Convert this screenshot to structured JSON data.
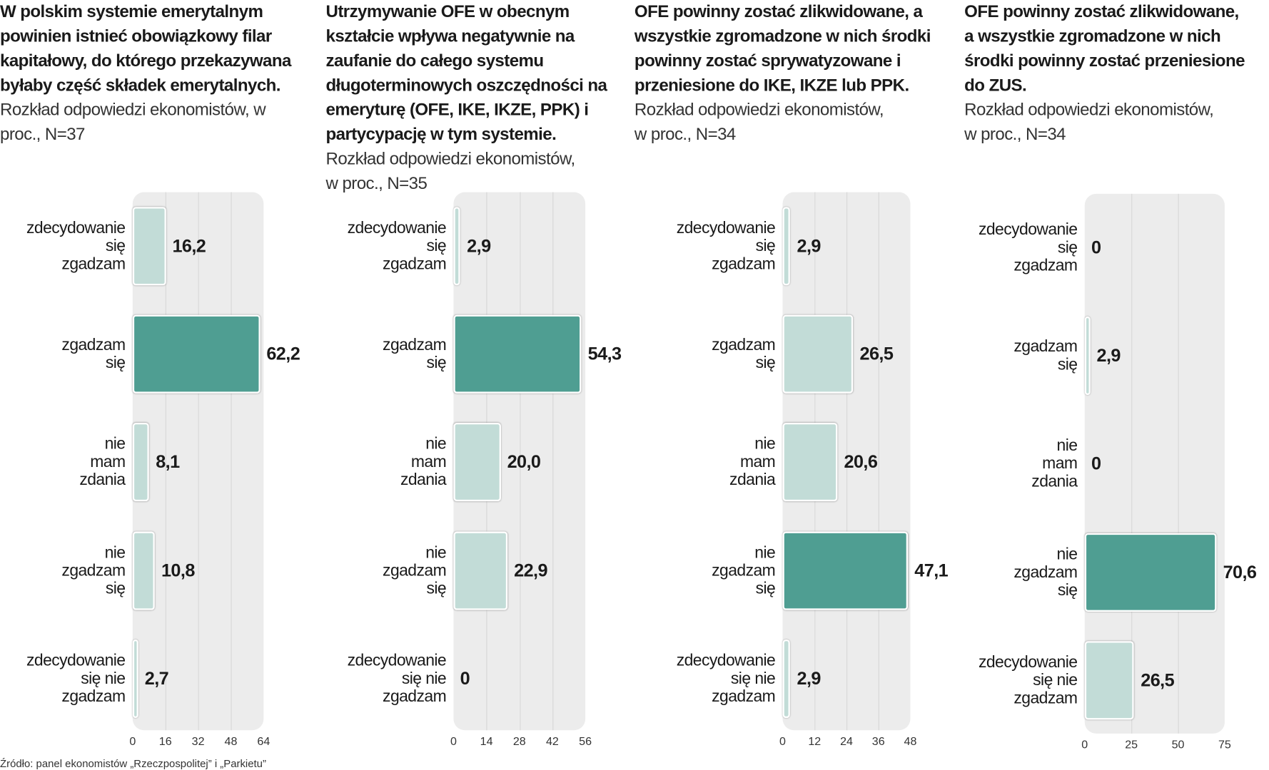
{
  "chart_data": [
    {
      "type": "bar",
      "orientation": "horizontal",
      "title": "W polskim systemie emerytalnym powinien istnieć obowiązkowy filar kapitałowy, do którego przekazywana byłaby część składek emerytalnych.",
      "subtitle": "Rozkład odpowiedzi ekonomistów, w proc., N=37",
      "categories": [
        "zdecydowanie\nsię\nzgadzam",
        "zgadzam\nsię",
        "nie\nmam\nzdania",
        "nie\nzgadzam\nsię",
        "zdecydowanie\nsię nie\nzgadzam"
      ],
      "values": [
        16.2,
        62.2,
        8.1,
        10.8,
        2.7
      ],
      "value_labels": [
        "16,2",
        "62,2",
        "8,1",
        "10,8",
        "2,7"
      ],
      "xlim": [
        0,
        64
      ],
      "ticks": [
        "0",
        "16",
        "32",
        "48",
        "64"
      ],
      "grid": true
    },
    {
      "type": "bar",
      "orientation": "horizontal",
      "title": "Utrzymywanie OFE w obecnym kształcie wpływa negatywnie na zaufanie do całego systemu długoterminowych oszczędności na emeryturę (OFE, IKE, IKZE, PPK) i partycypację w tym systemie.",
      "subtitle": "Rozkład odpowiedzi ekonomistów, w proc., N=35",
      "categories": [
        "zdecydowanie\nsię\nzgadzam",
        "zgadzam\nsię",
        "nie\nmam\nzdania",
        "nie\nzgadzam\nsię",
        "zdecydowanie\nsię nie\nzgadzam"
      ],
      "values": [
        2.9,
        54.3,
        20.0,
        22.9,
        0
      ],
      "value_labels": [
        "2,9",
        "54,3",
        "20,0",
        "22,9",
        "0"
      ],
      "xlim": [
        0,
        56
      ],
      "ticks": [
        "0",
        "14",
        "28",
        "42",
        "56"
      ],
      "grid": true
    },
    {
      "type": "bar",
      "orientation": "horizontal",
      "title": "OFE powinny zostać zlikwidowane, a wszystkie zgromadzone w nich środki powinny zostać sprywatyzowane i przeniesione do IKE, IKZE lub PPK.",
      "subtitle": "Rozkład odpowiedzi ekonomistów, w proc., N=34",
      "categories": [
        "zdecydowanie\nsię\nzgadzam",
        "zgadzam\nsię",
        "nie\nmam\nzdania",
        "nie\nzgadzam\nsię",
        "zdecydowanie\nsię nie\nzgadzam"
      ],
      "values": [
        2.9,
        26.5,
        20.6,
        47.1,
        2.9
      ],
      "value_labels": [
        "2,9",
        "26,5",
        "20,6",
        "47,1",
        "2,9"
      ],
      "xlim": [
        0,
        48
      ],
      "ticks": [
        "0",
        "12",
        "24",
        "36",
        "48"
      ],
      "grid": true
    },
    {
      "type": "bar",
      "orientation": "horizontal",
      "title": "OFE powinny zostać zlikwidowane, a wszystkie zgromadzone w nich środki powinny zostać przeniesione do ZUS.",
      "subtitle": "Rozkład odpowiedzi ekonomistów, w proc., N=34",
      "categories": [
        "zdecydowanie\nsię\nzgadzam",
        "zgadzam\nsię",
        "nie\nmam\nzdania",
        "nie\nzgadzam\nsię",
        "zdecydowanie\nsię nie\nzgadzam"
      ],
      "values": [
        0,
        2.9,
        0,
        70.6,
        26.5
      ],
      "value_labels": [
        "0",
        "2,9",
        "0",
        "70,6",
        "26,5"
      ],
      "xlim": [
        0,
        75
      ],
      "ticks": [
        "0",
        "25",
        "50",
        "75"
      ],
      "grid": true
    }
  ],
  "title_lines": [
    "W polskim systemie emerytalnym\npowinien istnieć obowiązkowy filar\nkapitałowy, do którego przekazywana\nbyłaby część składek emerytalnych.",
    "Utrzymywanie OFE w obecnym\nkształcie wpływa negatywnie na\nzaufanie do całego systemu\ndługoterminowych oszczędności na\nemeryturę (OFE, IKE, IKZE, PPK) i\npartycypację w tym systemie.",
    "OFE powinny zostać zlikwidowane, a\nwszystkie zgromadzone w nich środki\npowinny zostać sprywatyzowane i\nprzeniesione do IKE, IKZE lub PPK.",
    "OFE powinny zostać zlikwidowane,\na wszystkie zgromadzone w nich\nśrodki powinny zostać przeniesione\ndo ZUS."
  ],
  "subtitle_lines": [
    "Rozkład odpowiedzi ekonomistów, w\nproc., N=37",
    "Rozkład odpowiedzi ekonomistów,\nw proc., N=35",
    "Rozkład odpowiedzi ekonomistów,\nw proc., N=34",
    "Rozkład odpowiedzi ekonomistów,\nw proc., N=34"
  ],
  "colors": {
    "highlight": "#4f9e92",
    "bar": "#c2dcd7",
    "plot_bg": "#ececec"
  },
  "source": "Źródło: panel ekonomistów „Rzeczpospolitej” i „Parkietu”"
}
